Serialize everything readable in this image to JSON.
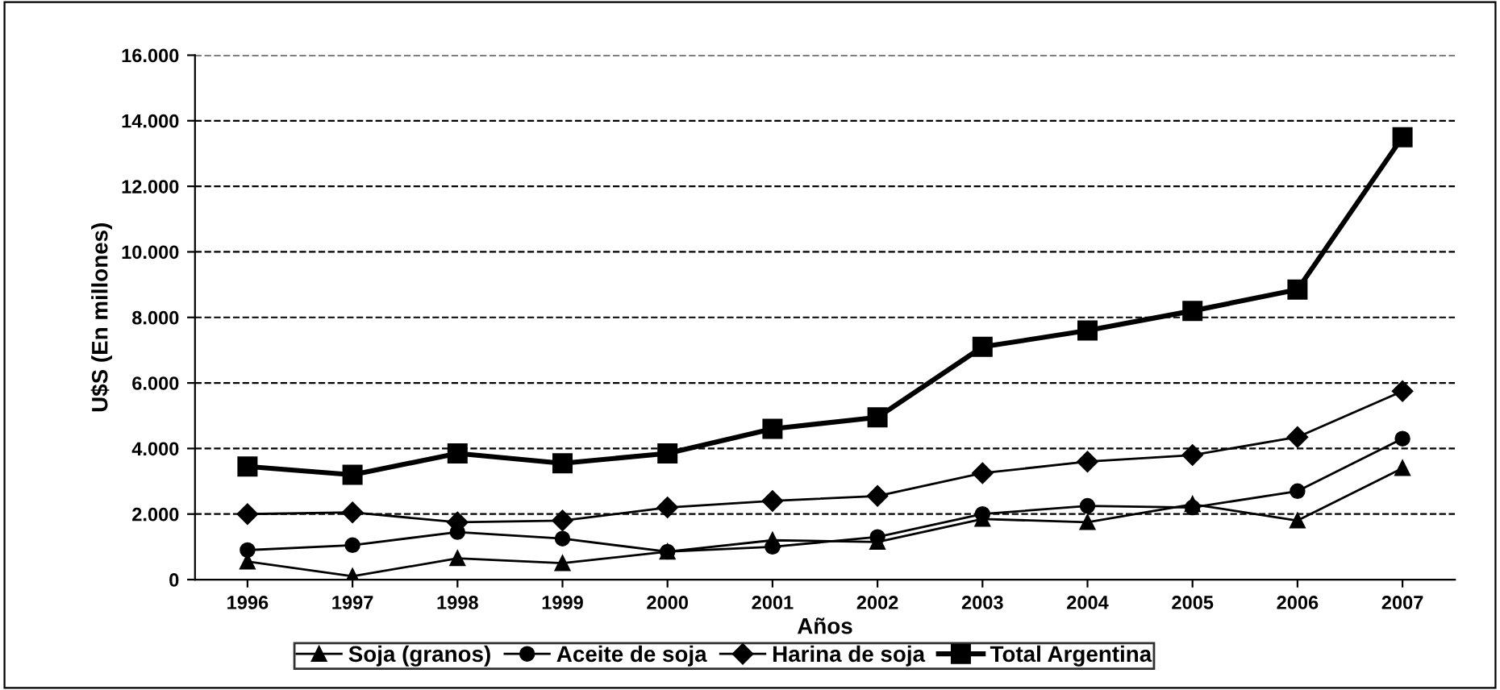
{
  "chart_data": {
    "type": "line",
    "xlabel": "Años",
    "ylabel": "U$S (En millones)",
    "categories": [
      "1996",
      "1997",
      "1998",
      "1999",
      "2000",
      "2001",
      "2002",
      "2003",
      "2004",
      "2005",
      "2006",
      "2007"
    ],
    "series": [
      {
        "name": "Soja (granos)",
        "color": "#000000",
        "marker": "triangle",
        "values": [
          550,
          100,
          650,
          500,
          850,
          1200,
          1150,
          1850,
          1750,
          2300,
          1800,
          3400
        ]
      },
      {
        "name": "Aceite de soja",
        "color": "#000000",
        "marker": "circle",
        "values": [
          900,
          1050,
          1450,
          1250,
          850,
          1000,
          1300,
          2000,
          2250,
          2200,
          2700,
          4300
        ]
      },
      {
        "name": "Harina de soja",
        "color": "#000000",
        "marker": "diamond",
        "values": [
          2000,
          2050,
          1750,
          1800,
          2200,
          2400,
          2550,
          3250,
          3600,
          3800,
          4350,
          5750
        ]
      },
      {
        "name": "Total Argentina",
        "color": "#000000",
        "marker": "square",
        "values": [
          3450,
          3200,
          3850,
          3550,
          3850,
          4600,
          4950,
          7100,
          7600,
          8200,
          8850,
          13500
        ]
      }
    ],
    "ylim": [
      0,
      16000
    ],
    "yticks": [
      0,
      {
        "value": 2000,
        "label": "2.000"
      },
      {
        "value": 4000,
        "label": "4.000"
      },
      {
        "value": 6000,
        "label": "6.000"
      },
      {
        "value": 8000,
        "label": "8.000"
      },
      {
        "value": 10000,
        "label": "10.000"
      },
      {
        "value": 12000,
        "label": "12.000"
      },
      {
        "value": 14000,
        "label": "14.000"
      },
      {
        "value": 16000,
        "label": "16.000"
      }
    ],
    "grid": "y",
    "legend": "bottom",
    "line_style": "solid"
  }
}
